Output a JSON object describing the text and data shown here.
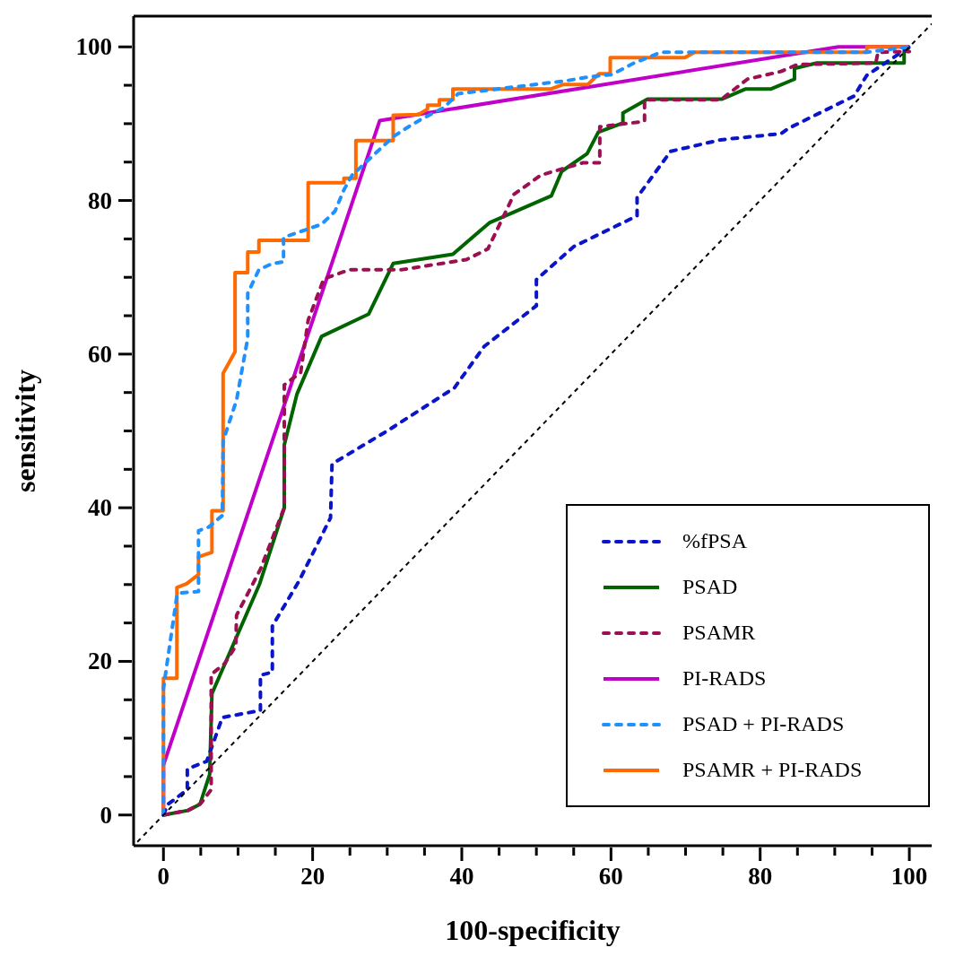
{
  "chart_data": {
    "type": "line",
    "xlabel": "100-specificity",
    "ylabel": "sensitivity",
    "xlim": [
      -4,
      103
    ],
    "ylim": [
      -4,
      104
    ],
    "xticks": [
      0,
      {
        "value": 5,
        "label": null
      },
      {
        "value": 10,
        "label": null
      },
      {
        "value": 15,
        "label": null
      },
      20,
      {
        "value": 25,
        "label": null
      },
      {
        "value": 30,
        "label": null
      },
      {
        "value": 35,
        "label": null
      },
      40,
      {
        "value": 45,
        "label": null
      },
      {
        "value": 50,
        "label": null
      },
      {
        "value": 55,
        "label": null
      },
      60,
      {
        "value": 65,
        "label": null
      },
      {
        "value": 70,
        "label": null
      },
      {
        "value": 75,
        "label": null
      },
      80,
      {
        "value": 85,
        "label": null
      },
      {
        "value": 90,
        "label": null
      },
      {
        "value": 95,
        "label": null
      },
      100
    ],
    "yticks": [
      0,
      {
        "value": 5,
        "label": null
      },
      {
        "value": 10,
        "label": null
      },
      {
        "value": 15,
        "label": null
      },
      20,
      {
        "value": 25,
        "label": null
      },
      {
        "value": 30,
        "label": null
      },
      {
        "value": 35,
        "label": null
      },
      40,
      {
        "value": 45,
        "label": null
      },
      {
        "value": 50,
        "label": null
      },
      {
        "value": 55,
        "label": null
      },
      60,
      {
        "value": 65,
        "label": null
      },
      {
        "value": 70,
        "label": null
      },
      {
        "value": 75,
        "label": null
      },
      80,
      {
        "value": 85,
        "label": null
      },
      {
        "value": 90,
        "label": null
      },
      {
        "value": 95,
        "label": null
      },
      100
    ],
    "grid": false,
    "legend": "bottom right",
    "marker": "none",
    "series": [
      {
        "name": "%fPSA",
        "color": "#0a14c8",
        "line_style": "dashed",
        "x": [
          0,
          0.6,
          3.2,
          3.2,
          5.8,
          7.9,
          13,
          13,
          14.6,
          14.6,
          18.2,
          22.4,
          22.6,
          30,
          39,
          43,
          50,
          50,
          55,
          63.5,
          63.5,
          68,
          74.7,
          82.8,
          83.8,
          92.6,
          94.3,
          100
        ],
        "values": [
          0,
          1.4,
          3.3,
          6,
          7,
          12.7,
          13.6,
          18.2,
          18.6,
          24.6,
          30.5,
          38.7,
          45.7,
          50,
          55.6,
          61,
          66.3,
          69.7,
          74,
          78,
          80.4,
          86.4,
          87.9,
          88.7,
          89.4,
          93.6,
          96.3,
          100
        ]
      },
      {
        "name": "PSAD",
        "color": "#006400",
        "line_style": "solid",
        "x": [
          0,
          3.3,
          4.9,
          6.2,
          6.5,
          12.9,
          16.2,
          16.2,
          17.9,
          21.2,
          27.5,
          30.8,
          38.8,
          43.7,
          52,
          53.4,
          56.8,
          58.3,
          61.6,
          61.6,
          64.9,
          74.9,
          78,
          81.4,
          84.6,
          84.6,
          87.6,
          99.3,
          99.3,
          100
        ],
        "values": [
          0,
          0.6,
          1.4,
          5.3,
          15.8,
          30.1,
          40,
          48.2,
          54.8,
          62.3,
          65.2,
          71.8,
          73,
          77.1,
          80.6,
          83.8,
          86.1,
          88.9,
          90.1,
          91.4,
          93.2,
          93.2,
          94.5,
          94.5,
          95.8,
          97.2,
          97.9,
          97.9,
          99.3,
          100
        ]
      },
      {
        "name": "PSAMR",
        "color": "#9b1050",
        "line_style": "dashed",
        "x": [
          0,
          3.3,
          5,
          6.4,
          6.4,
          8.2,
          9.7,
          9.8,
          13,
          16.2,
          16.2,
          18.4,
          19.4,
          21.5,
          25,
          32,
          40.6,
          43.5,
          47,
          50.6,
          56.2,
          58.5,
          58.5,
          64.5,
          64.5,
          74.7,
          78.3,
          82.8,
          85,
          95.5,
          95.8,
          100
        ],
        "values": [
          0,
          0.6,
          1.5,
          3.3,
          18.3,
          19.7,
          22,
          26,
          32,
          40,
          56,
          57.6,
          64.4,
          69.8,
          71,
          71,
          72.3,
          73.7,
          80.8,
          83.3,
          84.9,
          84.9,
          89.6,
          90.3,
          93.1,
          93.1,
          95.8,
          96.8,
          97.7,
          97.9,
          99.3,
          99.4
        ]
      },
      {
        "name": "PI-RADS",
        "color": "#c000c8",
        "line_style": "solid",
        "x": [
          0,
          0,
          29,
          90.5,
          100
        ],
        "values": [
          0,
          6.5,
          90.4,
          100,
          100
        ]
      },
      {
        "name": "PSAD + PI-RADS",
        "color": "#1e90ff",
        "line_style": "dashed",
        "x": [
          0,
          0,
          1.8,
          2.2,
          4.7,
          4.7,
          6.1,
          7.9,
          8,
          9.8,
          11.3,
          11.3,
          12.8,
          14.6,
          16.1,
          16.1,
          21.2,
          23,
          24.2,
          25.3,
          30.8,
          32.7,
          34.6,
          37.6,
          39.5,
          54.1,
          57.1,
          60.1,
          63.1,
          66.7,
          70.2,
          94.3,
          100
        ],
        "values": [
          0,
          16.5,
          28.5,
          28.9,
          29.1,
          37,
          37.5,
          39,
          48.7,
          54,
          62.1,
          67.9,
          71,
          71.8,
          72,
          75.2,
          76.9,
          78.6,
          81.4,
          83.3,
          88.3,
          89.5,
          90.6,
          92.1,
          93.9,
          95.6,
          96.1,
          96.4,
          97.9,
          99.3,
          99.3,
          99.3,
          100
        ]
      },
      {
        "name": "PSAMR + PI-RADS",
        "color": "#ff6a00",
        "line_style": "solid",
        "x": [
          0,
          0,
          1.8,
          1.8,
          3.1,
          4.7,
          4.7,
          6.5,
          6.5,
          8,
          8,
          9.6,
          9.6,
          11.3,
          11.3,
          12.8,
          12.8,
          19.4,
          19.4,
          24.2,
          24.2,
          25.8,
          25.8,
          30.8,
          30.8,
          34.2,
          35.4,
          35.4,
          37,
          37,
          38.8,
          38.8,
          51.9,
          53.6,
          56.9,
          58.4,
          59.9,
          59.9,
          69.9,
          71.2,
          94.3,
          94.3,
          100
        ],
        "values": [
          0,
          17.8,
          17.8,
          29.6,
          30.1,
          31.3,
          33.6,
          34.2,
          39.6,
          39.6,
          57.5,
          60.3,
          70.6,
          70.6,
          73.3,
          73.3,
          74.8,
          74.8,
          82.3,
          82.3,
          82.9,
          82.9,
          87.8,
          87.8,
          91.1,
          91.2,
          91.9,
          92.4,
          92.4,
          93.1,
          93.1,
          94.5,
          94.5,
          95.1,
          95.1,
          96.5,
          96.5,
          98.6,
          98.6,
          99.3,
          99.3,
          100,
          100
        ]
      },
      {
        "color": "#000000",
        "line_style": "dotted",
        "x": [
          -3.5,
          103
        ],
        "values": [
          -3.5,
          103
        ]
      }
    ]
  }
}
